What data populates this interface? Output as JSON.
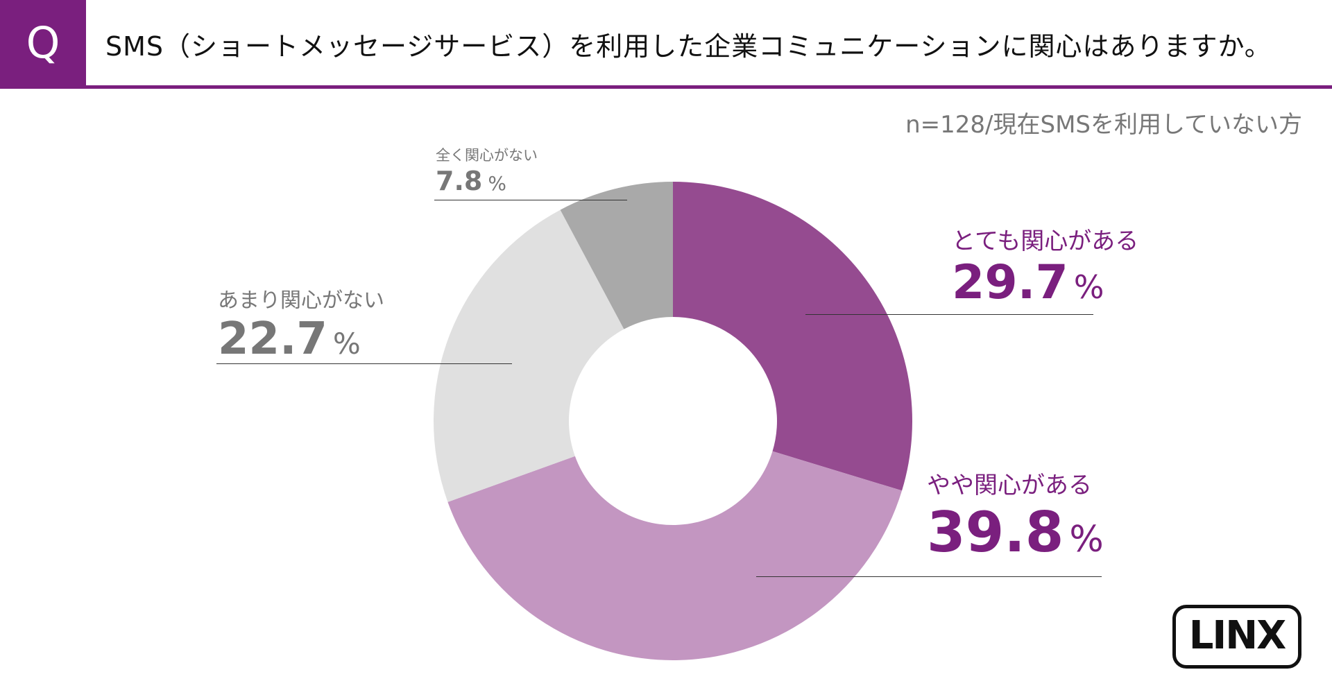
{
  "header": {
    "q_label": "Q",
    "title": "SMS（ショートメッセージサービス）を利用した企業コミュニケーションに関心はありますか。"
  },
  "note": "n=128/現在SMSを利用していない方",
  "logo": {
    "text": "LINX"
  },
  "colors": {
    "brand": "#7a1f7e",
    "header_rule": "#7a1f7e",
    "label_purple": "#7a1f7e",
    "label_gray": "#777777"
  },
  "chart_data": {
    "type": "pie",
    "donut": true,
    "title": "SMS（ショートメッセージサービス）を利用した企業コミュニケーションに関心はありますか。",
    "subtitle": "n=128/現在SMSを利用していない方",
    "unit": "%",
    "slices": [
      {
        "label": "とても関心がある",
        "value": 29.7,
        "display": "29.7",
        "color": "#954b90"
      },
      {
        "label": "やや関心がある",
        "value": 39.8,
        "display": "39.8",
        "color": "#c396c1"
      },
      {
        "label": "あまり関心がない",
        "value": 22.7,
        "display": "22.7",
        "color": "#e0e0e0"
      },
      {
        "label": "全く関心がない",
        "value": 7.8,
        "display": "7.8",
        "color": "#a9a9a9"
      }
    ]
  }
}
